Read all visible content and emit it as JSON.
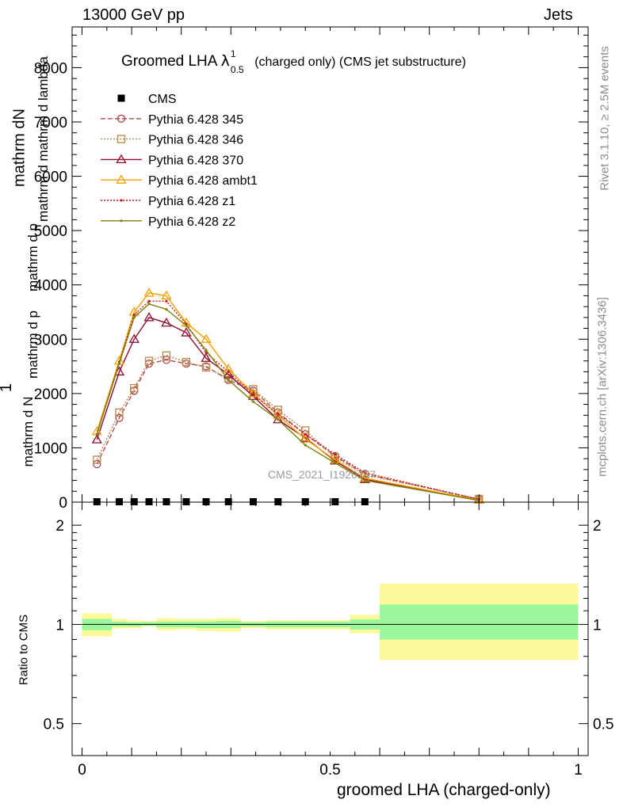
{
  "header": {
    "left": "13000 GeV pp",
    "right": "Jets"
  },
  "side_labels": {
    "rivet": "Rivet 3.1.10, ≥ 2.5M events",
    "mcplots": "mcplots.cern.ch [arXiv:1306.3436]"
  },
  "title": {
    "main": "Groomed LHA ",
    "lambda": "λ",
    "sup": "1",
    "sub": "0.5",
    "rest": "(charged only) (CMS jet substructure)"
  },
  "ylabel": {
    "top_num": "mathrm dN",
    "top_den": "mathrm d p",
    "top_den2": "mathrm d mathrm d lambda",
    "one": "1",
    "bot": "mathrm d N",
    "bot2": "mathrm d p",
    "bot3": "mathrm d p"
  },
  "watermark": "CMS_2021_I1920187",
  "ratio_ylabel": "Ratio to CMS",
  "xlabel": "groomed LHA (charged-only)",
  "legend": [
    {
      "name": "CMS",
      "color": "#000000",
      "marker": "square-filled",
      "dash": ""
    },
    {
      "name": "Pythia 6.428 345",
      "color": "#b5474d",
      "marker": "circle-open",
      "dash": "6,3"
    },
    {
      "name": "Pythia 6.428 346",
      "color": "#b58a4a",
      "marker": "square-open",
      "dash": "2,2"
    },
    {
      "name": "Pythia 6.428 370",
      "color": "#8b0d2b",
      "marker": "triangle-open",
      "dash": ""
    },
    {
      "name": "Pythia 6.428 ambt1",
      "color": "#f5a000",
      "marker": "triangle-open",
      "dash": ""
    },
    {
      "name": "Pythia 6.428 z1",
      "color": "#c41a1a",
      "marker": "dot",
      "dash": "2,2"
    },
    {
      "name": "Pythia 6.428 z2",
      "color": "#7f7f10",
      "marker": "dot",
      "dash": ""
    }
  ],
  "chart_data": {
    "type": "line",
    "main_ylim": [
      0,
      8750
    ],
    "main_yticks": [
      0,
      1000,
      2000,
      3000,
      4000,
      5000,
      6000,
      7000,
      8000
    ],
    "main_ytick_labels": [
      "0",
      "1000",
      "2000",
      "3000",
      "4000",
      "5000",
      "6000",
      "7000",
      "8000"
    ],
    "xlim": [
      -0.02,
      1.02
    ],
    "xticks": [
      0,
      0.5,
      1
    ],
    "xtick_labels": [
      "0",
      "0.5",
      "1"
    ],
    "x": [
      0.03,
      0.075,
      0.105,
      0.135,
      0.17,
      0.21,
      0.25,
      0.295,
      0.345,
      0.395,
      0.45,
      0.51,
      0.57,
      0.8
    ],
    "cms": [
      0.5,
      0.5,
      0.5,
      0.5,
      0.5,
      0.5,
      0.5,
      0.5,
      0.5,
      0.5,
      0.5,
      0.5,
      0.5
    ],
    "cms_x": [
      0.03,
      0.075,
      0.105,
      0.135,
      0.17,
      0.21,
      0.25,
      0.295,
      0.345,
      0.395,
      0.45,
      0.51,
      0.57
    ],
    "series": [
      {
        "name": "Pythia 6.428 345",
        "values": [
          700,
          1550,
          2050,
          2550,
          2620,
          2550,
          2500,
          2250,
          2050,
          1650,
          1250,
          850,
          520,
          50
        ]
      },
      {
        "name": "Pythia 6.428 346",
        "values": [
          780,
          1650,
          2100,
          2600,
          2700,
          2580,
          2480,
          2280,
          2080,
          1700,
          1320,
          820,
          500,
          60
        ]
      },
      {
        "name": "Pythia 6.428 370",
        "values": [
          1150,
          2400,
          3000,
          3400,
          3300,
          3120,
          2650,
          2350,
          1950,
          1520,
          1180,
          760,
          420,
          40
        ]
      },
      {
        "name": "Pythia 6.428 ambt1",
        "values": [
          1300,
          2600,
          3500,
          3850,
          3800,
          3300,
          3000,
          2450,
          2000,
          1600,
          1160,
          780,
          440,
          40
        ]
      },
      {
        "name": "Pythia 6.428 z1",
        "values": [
          1250,
          2580,
          3450,
          3700,
          3700,
          3280,
          2750,
          2400,
          1980,
          1620,
          1250,
          880,
          540,
          50
        ]
      },
      {
        "name": "Pythia 6.428 z2",
        "values": [
          1250,
          2550,
          3400,
          3650,
          3550,
          3250,
          2800,
          2250,
          1850,
          1520,
          1050,
          720,
          400,
          30
        ]
      }
    ],
    "ratio": {
      "ylim": [
        0.4,
        2.35
      ],
      "log": true,
      "yticks": [
        0.5,
        1,
        2
      ],
      "ytick_labels": [
        "0.5",
        "1",
        "2"
      ],
      "bands": [
        {
          "x0": 0.0,
          "x1": 0.06,
          "y_lo": 0.92,
          "y_hi": 1.08,
          "g_lo": 0.96,
          "g_hi": 1.04
        },
        {
          "x0": 0.06,
          "x1": 0.09,
          "y_lo": 0.97,
          "y_hi": 1.04,
          "g_lo": 0.985,
          "g_hi": 1.02
        },
        {
          "x0": 0.09,
          "x1": 0.12,
          "y_lo": 0.975,
          "y_hi": 1.03,
          "g_lo": 0.985,
          "g_hi": 1.015
        },
        {
          "x0": 0.12,
          "x1": 0.15,
          "y_lo": 0.985,
          "y_hi": 1.025,
          "g_lo": 0.99,
          "g_hi": 1.015
        },
        {
          "x0": 0.15,
          "x1": 0.19,
          "y_lo": 0.96,
          "y_hi": 1.045,
          "g_lo": 0.98,
          "g_hi": 1.02
        },
        {
          "x0": 0.19,
          "x1": 0.23,
          "y_lo": 0.965,
          "y_hi": 1.04,
          "g_lo": 0.98,
          "g_hi": 1.02
        },
        {
          "x0": 0.23,
          "x1": 0.27,
          "y_lo": 0.955,
          "y_hi": 1.04,
          "g_lo": 0.975,
          "g_hi": 1.02
        },
        {
          "x0": 0.27,
          "x1": 0.32,
          "y_lo": 0.95,
          "y_hi": 1.045,
          "g_lo": 0.975,
          "g_hi": 1.025
        },
        {
          "x0": 0.32,
          "x1": 0.37,
          "y_lo": 0.975,
          "y_hi": 1.025,
          "g_lo": 0.985,
          "g_hi": 1.015
        },
        {
          "x0": 0.37,
          "x1": 0.42,
          "y_lo": 0.965,
          "y_hi": 1.03,
          "g_lo": 0.98,
          "g_hi": 1.02
        },
        {
          "x0": 0.42,
          "x1": 0.48,
          "y_lo": 0.965,
          "y_hi": 1.03,
          "g_lo": 0.98,
          "g_hi": 1.02
        },
        {
          "x0": 0.48,
          "x1": 0.54,
          "y_lo": 0.965,
          "y_hi": 1.03,
          "g_lo": 0.98,
          "g_hi": 1.02
        },
        {
          "x0": 0.54,
          "x1": 0.6,
          "y_lo": 0.94,
          "y_hi": 1.07,
          "g_lo": 0.965,
          "g_hi": 1.035
        },
        {
          "x0": 0.6,
          "x1": 1.0,
          "y_lo": 0.78,
          "y_hi": 1.33,
          "g_lo": 0.9,
          "g_hi": 1.15
        }
      ]
    },
    "band_colors": {
      "yellow": "#fcf99a",
      "green": "#9bf79b"
    }
  }
}
